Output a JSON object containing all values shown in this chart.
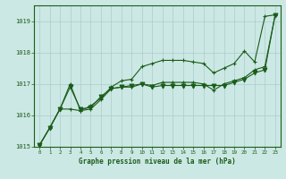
{
  "background_color": "#cce8e4",
  "grid_color": "#aacccc",
  "line_color": "#1a5c1a",
  "ylim": [
    1015.0,
    1019.5
  ],
  "xlim": [
    -0.5,
    23.5
  ],
  "yticks": [
    1015,
    1016,
    1017,
    1018,
    1019
  ],
  "xticks": [
    0,
    1,
    2,
    3,
    4,
    5,
    6,
    7,
    8,
    9,
    10,
    11,
    12,
    13,
    14,
    15,
    16,
    17,
    18,
    19,
    20,
    21,
    22,
    23
  ],
  "xlabel": "Graphe pression niveau de la mer (hPa)",
  "series": [
    {
      "y": [
        1015.05,
        1015.6,
        1016.2,
        1017.0,
        1016.15,
        1016.3,
        1016.55,
        1016.9,
        1017.1,
        1017.15,
        1017.55,
        1017.65,
        1017.75,
        1017.75,
        1017.75,
        1017.7,
        1017.65,
        1017.35,
        1017.5,
        1017.65,
        1018.05,
        1017.7,
        1019.15,
        1019.2
      ],
      "marker": "+"
    },
    {
      "y": [
        1015.05,
        1015.6,
        1016.2,
        1016.2,
        1016.15,
        1016.2,
        1016.5,
        1016.85,
        1016.9,
        1016.9,
        1017.0,
        1016.95,
        1017.05,
        1017.05,
        1017.05,
        1017.05,
        1017.0,
        1016.8,
        1017.0,
        1017.1,
        1017.2,
        1017.45,
        1017.55,
        1019.2
      ],
      "marker": "+"
    },
    {
      "y": [
        1015.05,
        1015.6,
        1016.2,
        1016.9,
        1016.2,
        1016.25,
        1016.6,
        1016.85,
        1016.9,
        1016.95,
        1017.0,
        1016.9,
        1016.95,
        1016.95,
        1016.95,
        1016.95,
        1016.95,
        1016.95,
        1016.95,
        1017.05,
        1017.15,
        1017.35,
        1017.45,
        1019.2
      ],
      "marker": "v"
    }
  ]
}
